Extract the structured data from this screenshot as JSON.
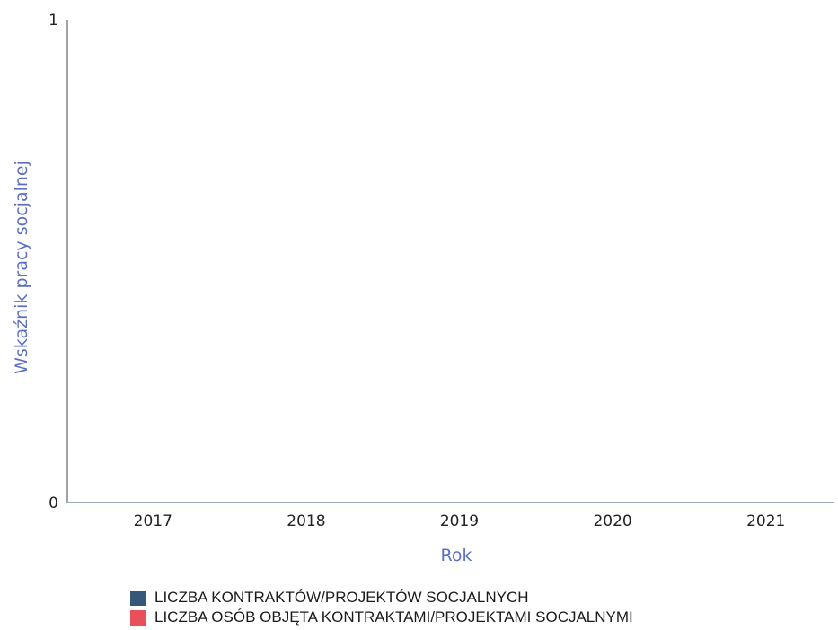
{
  "chart_data": {
    "type": "bar",
    "categories": [
      "2017",
      "2018",
      "2019",
      "2020",
      "2021"
    ],
    "series": [
      {
        "name": "LICZBA KONTRAKTÓW/PROJEKTÓW SOCJALNYCH",
        "values": [
          0,
          0,
          0,
          0,
          0
        ],
        "color": "#34587a"
      },
      {
        "name": "LICZBA OSÓB OBJĘTA KONTRAKTAMI/PROJEKTAMI SOCJALNYMI",
        "values": [
          0,
          0,
          0,
          0,
          0
        ],
        "color": "#e8505b"
      }
    ],
    "title": "",
    "xlabel": "Rok",
    "ylabel": "Wskaźnik pracy socjalnej",
    "ylim": [
      0,
      1
    ],
    "yticks": [
      "0",
      "1"
    ],
    "grid": false,
    "legend": "bottom",
    "axis_title_color": "#5b6fc4"
  }
}
